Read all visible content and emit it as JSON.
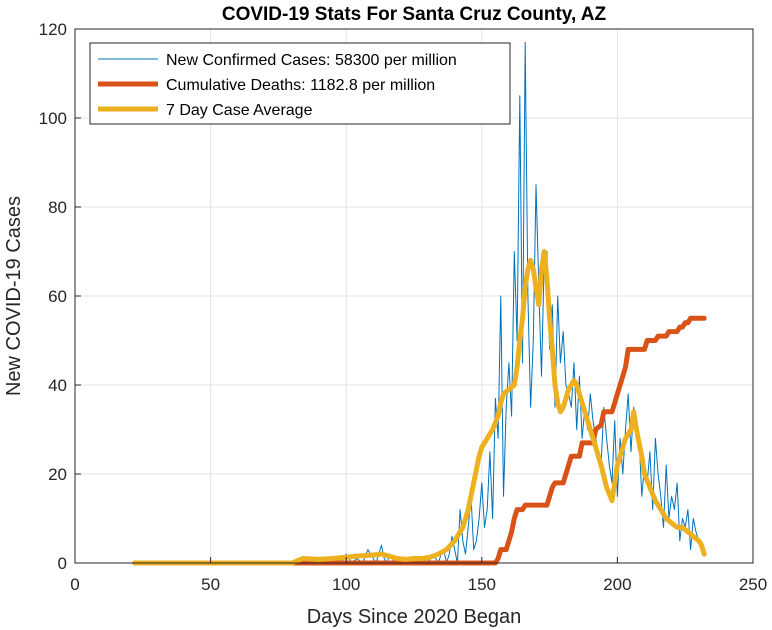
{
  "chart_data": {
    "type": "line",
    "title": "COVID-19 Stats For Santa Cruz County, AZ",
    "xlabel": "Days Since 2020 Began",
    "ylabel": "New COVID-19 Cases",
    "xlim": [
      0,
      250
    ],
    "ylim": [
      0,
      120
    ],
    "xticks": [
      0,
      50,
      100,
      150,
      200,
      250
    ],
    "yticks": [
      0,
      20,
      40,
      60,
      80,
      100,
      120
    ],
    "grid": true,
    "legend_position": "top-left",
    "series": [
      {
        "name": "New Confirmed Cases: 58300 per million",
        "color": "#0072BD",
        "x": [
          22,
          84,
          86,
          88,
          90,
          92,
          94,
          96,
          98,
          100,
          102,
          104,
          106,
          108,
          110,
          111,
          112,
          113,
          114,
          115,
          116,
          117,
          118,
          119,
          120,
          122,
          124,
          126,
          128,
          130,
          132,
          133,
          134,
          135,
          136,
          137,
          138,
          139,
          140,
          141,
          142,
          143,
          144,
          145,
          146,
          147,
          148,
          149,
          150,
          151,
          152,
          153,
          154,
          155,
          156,
          157,
          158,
          159,
          160,
          161,
          162,
          163,
          164,
          165,
          166,
          167,
          168,
          169,
          170,
          171,
          172,
          173,
          174,
          175,
          176,
          177,
          178,
          179,
          180,
          181,
          182,
          183,
          184,
          185,
          186,
          187,
          188,
          189,
          190,
          191,
          192,
          193,
          194,
          195,
          196,
          197,
          198,
          199,
          200,
          201,
          202,
          203,
          204,
          205,
          206,
          207,
          208,
          209,
          210,
          211,
          212,
          213,
          214,
          215,
          216,
          217,
          218,
          219,
          220,
          221,
          222,
          223,
          224,
          225,
          226,
          227,
          228,
          229,
          230,
          231,
          232
        ],
        "values": [
          0,
          0,
          0,
          0,
          1,
          0,
          0,
          0,
          0,
          2,
          0,
          1,
          0,
          3,
          1,
          0,
          2,
          4,
          1,
          0,
          2,
          1,
          0,
          0,
          1,
          0,
          0,
          0,
          1,
          0,
          2,
          1,
          0,
          2,
          3,
          0,
          2,
          6,
          3,
          0,
          12,
          5,
          2,
          8,
          15,
          3,
          5,
          10,
          18,
          8,
          12,
          25,
          10,
          37,
          28,
          60,
          15,
          35,
          45,
          33,
          70,
          50,
          105,
          45,
          117,
          60,
          35,
          50,
          85,
          62,
          42,
          68,
          70,
          48,
          58,
          35,
          60,
          45,
          52,
          40,
          38,
          35,
          45,
          30,
          42,
          28,
          35,
          30,
          38,
          32,
          28,
          25,
          22,
          35,
          28,
          22,
          18,
          32,
          15,
          28,
          20,
          30,
          38,
          25,
          35,
          30,
          28,
          15,
          22,
          18,
          25,
          12,
          28,
          20,
          15,
          8,
          22,
          10,
          15,
          12,
          18,
          5,
          10,
          8,
          12,
          3,
          10,
          7,
          5,
          3,
          2
        ]
      },
      {
        "name": "Cumulative Deaths: 1182.8 per million",
        "color": "#D95319",
        "x": [
          22,
          155,
          156,
          157,
          159,
          160,
          161,
          162,
          163,
          165,
          166,
          167,
          168,
          174,
          175,
          176,
          177,
          180,
          181,
          182,
          183,
          186,
          187,
          191,
          192,
          194,
          195,
          198,
          199,
          200,
          201,
          203,
          204,
          210,
          211,
          214,
          215,
          218,
          219,
          222,
          223,
          224,
          225,
          226,
          227,
          228,
          229,
          232
        ],
        "values": [
          0,
          0,
          1,
          3,
          3,
          5,
          7,
          10,
          12,
          12,
          13,
          13,
          13,
          13,
          15,
          17,
          18,
          18,
          20,
          22,
          24,
          24,
          27,
          27,
          30,
          31,
          34,
          34,
          36,
          38,
          40,
          44,
          48,
          48,
          50,
          50,
          51,
          51,
          52,
          52,
          53,
          53,
          54,
          54,
          55,
          55,
          55,
          55
        ]
      },
      {
        "name": "7 Day Case Average",
        "color": "#EDB120",
        "x": [
          22,
          80,
          84,
          90,
          95,
          100,
          105,
          110,
          113,
          116,
          119,
          122,
          125,
          128,
          131,
          134,
          137,
          140,
          143,
          145,
          147,
          149,
          150,
          152,
          154,
          156,
          157,
          158,
          160,
          162,
          163,
          164,
          165,
          166,
          167,
          168,
          169,
          170,
          171,
          172,
          173,
          174,
          175,
          176,
          177,
          178,
          179,
          180,
          181,
          182,
          183,
          184,
          185,
          186,
          187,
          188,
          189,
          190,
          192,
          194,
          196,
          198,
          199,
          200,
          201,
          203,
          205,
          206,
          207,
          208,
          209,
          210,
          212,
          214,
          216,
          218,
          220,
          222,
          224,
          226,
          228,
          230,
          231,
          232
        ],
        "values": [
          0,
          0,
          1,
          0.8,
          1,
          1.3,
          1.6,
          1.8,
          2,
          1.5,
          1,
          0.8,
          1,
          1,
          1.3,
          2,
          3,
          5,
          8,
          12,
          18,
          24,
          26,
          28,
          30,
          33,
          36,
          38,
          39,
          40,
          44,
          50,
          55,
          62,
          66,
          68,
          66,
          62,
          58,
          66,
          70,
          64,
          55,
          48,
          40,
          36,
          34,
          35,
          37,
          39,
          40,
          41,
          40,
          38,
          36,
          34,
          32,
          30,
          26,
          22,
          17,
          14,
          18,
          22,
          24,
          28,
          30,
          34,
          30,
          27,
          24,
          20,
          17,
          14,
          12,
          10,
          9,
          8,
          8,
          7,
          6,
          5,
          4,
          2
        ]
      }
    ]
  }
}
